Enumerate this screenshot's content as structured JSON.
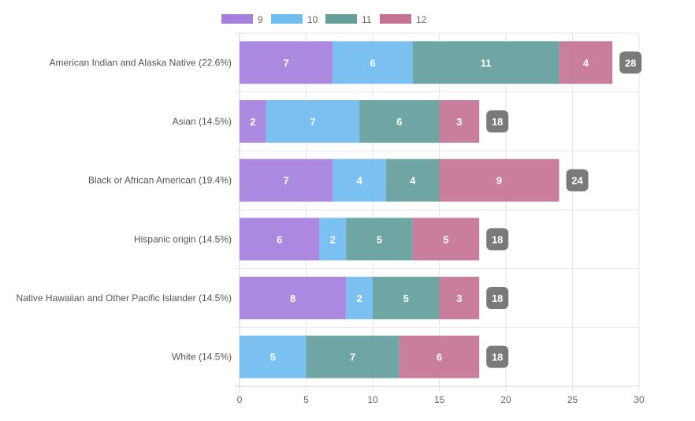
{
  "chart_data": {
    "type": "bar",
    "orientation": "horizontal",
    "stacked": true,
    "categories": [
      "American Indian and Alaska Native (22.6%)",
      "Asian (14.5%)",
      "Black or African American (19.4%)",
      "Hispanic origin (14.5%)",
      "Native Hawaiian and Other Pacific Islander (14.5%)",
      "White (14.5%)"
    ],
    "series": [
      {
        "name": "9",
        "color": "#a47fdd",
        "values": [
          7,
          2,
          7,
          6,
          8,
          0
        ]
      },
      {
        "name": "10",
        "color": "#6fbcf0",
        "values": [
          6,
          7,
          4,
          2,
          2,
          5
        ]
      },
      {
        "name": "11",
        "color": "#639e9b",
        "values": [
          11,
          6,
          4,
          5,
          5,
          7
        ]
      },
      {
        "name": "12",
        "color": "#c47394",
        "values": [
          4,
          3,
          9,
          5,
          3,
          6
        ]
      }
    ],
    "totals": [
      28,
      18,
      24,
      18,
      18,
      18
    ],
    "total_badge_color": "#7a7a7a",
    "xlim": [
      0,
      30
    ],
    "xticks": [
      0,
      5,
      10,
      15,
      20,
      25,
      30
    ],
    "grid": true,
    "legend_position": "top",
    "title": "",
    "xlabel": "",
    "ylabel": ""
  }
}
